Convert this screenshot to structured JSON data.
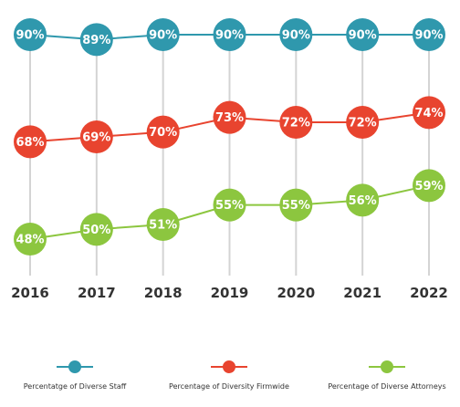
{
  "chart_data": {
    "type": "line",
    "categories": [
      "2016",
      "2017",
      "2018",
      "2019",
      "2020",
      "2021",
      "2022"
    ],
    "series": [
      {
        "name": "Percentatge of Diverse Staff",
        "values": [
          90,
          89,
          90,
          90,
          90,
          90,
          90
        ],
        "labels": [
          "90%",
          "89%",
          "90%",
          "90%",
          "90%",
          "90%",
          "90%"
        ],
        "color": "#2f98ad"
      },
      {
        "name": "Percentage of Diversity Firmwide",
        "values": [
          68,
          69,
          70,
          73,
          72,
          72,
          74
        ],
        "labels": [
          "68%",
          "69%",
          "70%",
          "73%",
          "72%",
          "72%",
          "74%"
        ],
        "color": "#e8442f"
      },
      {
        "name": "Percentage of Diverse Attorneys",
        "values": [
          48,
          50,
          51,
          55,
          55,
          56,
          59
        ],
        "labels": [
          "48%",
          "50%",
          "51%",
          "55%",
          "55%",
          "56%",
          "59%"
        ],
        "color": "#8cc63f"
      }
    ],
    "grid": "vertical",
    "legend": "bottom"
  },
  "colors": {
    "gridline": "#d4d4d4",
    "text": "#333333"
  }
}
